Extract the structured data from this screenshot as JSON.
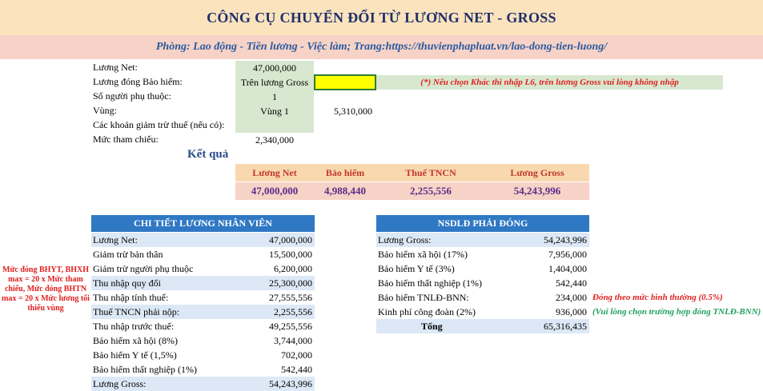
{
  "header": {
    "title": "CÔNG CỤ CHUYỂN ĐỔI TỪ LƯƠNG NET - GROSS",
    "subtitle": "Phòng: Lao động - Tiền lương - Việc làm; Trang:https://thuvienphapluat.vn/lao-dong-tien-luong/"
  },
  "inputs": {
    "net_label": "Lương Net:",
    "net_value": "47,000,000",
    "insurance_label": "Lương đóng Bảo hiểm:",
    "insurance_value": "Trên lương Gross",
    "insurance_note": "(*) Nếu chọn Khác thì nhập L6, trên lương Gross vui lòng không nhập",
    "dependents_label": "Số người phụ thuộc:",
    "dependents_value": "1",
    "region_label": "Vùng:",
    "region_value": "Vùng 1",
    "region_min_wage": "5,310,000",
    "deductions_label": "Các khoản giảm trừ thuế (nếu có):",
    "reference_label": "Mức tham chiếu:",
    "reference_value": "2,340,000"
  },
  "result": {
    "heading": "Kết quả",
    "headers": [
      "Lương Net",
      "Bảo hiểm",
      "Thuế TNCN",
      "Lương Gross"
    ],
    "values": [
      "47,000,000",
      "4,988,440",
      "2,255,556",
      "54,243,996"
    ]
  },
  "employee": {
    "title": "CHI TIẾT LƯƠNG NHÂN VIÊN",
    "rows": [
      {
        "label": "Lương Net:",
        "value": "47,000,000"
      },
      {
        "label": "Giảm trừ bản thân",
        "value": "15,500,000"
      },
      {
        "label": "Giảm trừ người phụ thuộc",
        "value": "6,200,000"
      },
      {
        "label": "Thu nhập quy đổi",
        "value": "25,300,000"
      },
      {
        "label": "Thu nhập tính thuế:",
        "value": "27,555,556"
      },
      {
        "label": "Thuế TNCN phải nộp:",
        "value": "2,255,556"
      },
      {
        "label": "Thu nhập trước thuế:",
        "value": "49,255,556"
      },
      {
        "label": "Bảo hiểm xã hội (8%)",
        "value": "3,744,000"
      },
      {
        "label": "Bảo hiểm Y tế (1,5%)",
        "value": "702,000"
      },
      {
        "label": "Bảo hiểm thất nghiệp (1%)",
        "value": "542,440"
      },
      {
        "label": "Lương Gross:",
        "value": "54,243,996"
      }
    ]
  },
  "employer": {
    "title": "NSDLĐ PHẢI ĐÓNG",
    "rows": [
      {
        "label": "Lương Gross:",
        "value": "54,243,996"
      },
      {
        "label": "Bảo hiểm xã hội (17%)",
        "value": "7,956,000"
      },
      {
        "label": "Bảo hiểm Y tế (3%)",
        "value": "1,404,000"
      },
      {
        "label": "Bảo hiểm thất nghiệp (1%)",
        "value": "542,440"
      },
      {
        "label": "Bảo hiểm TNLĐ-BNN:",
        "value": "234,000"
      },
      {
        "label": "Kinh phí công đoàn (2%)",
        "value": "936,000"
      }
    ],
    "total_label": "Tổng",
    "total_value": "65,316,435",
    "note_tnld": "Đóng theo mức bình thường (0.5%)",
    "note_union": "(Vui lòng chọn trường hợp đóng TNLĐ-BNN)"
  },
  "side_note": "Mức đóng BHYT, BHXH max = 20 x Mức tham chiếu, Mức đóng BHTN max = 20 x Mức lương tối thiểu vùng"
}
